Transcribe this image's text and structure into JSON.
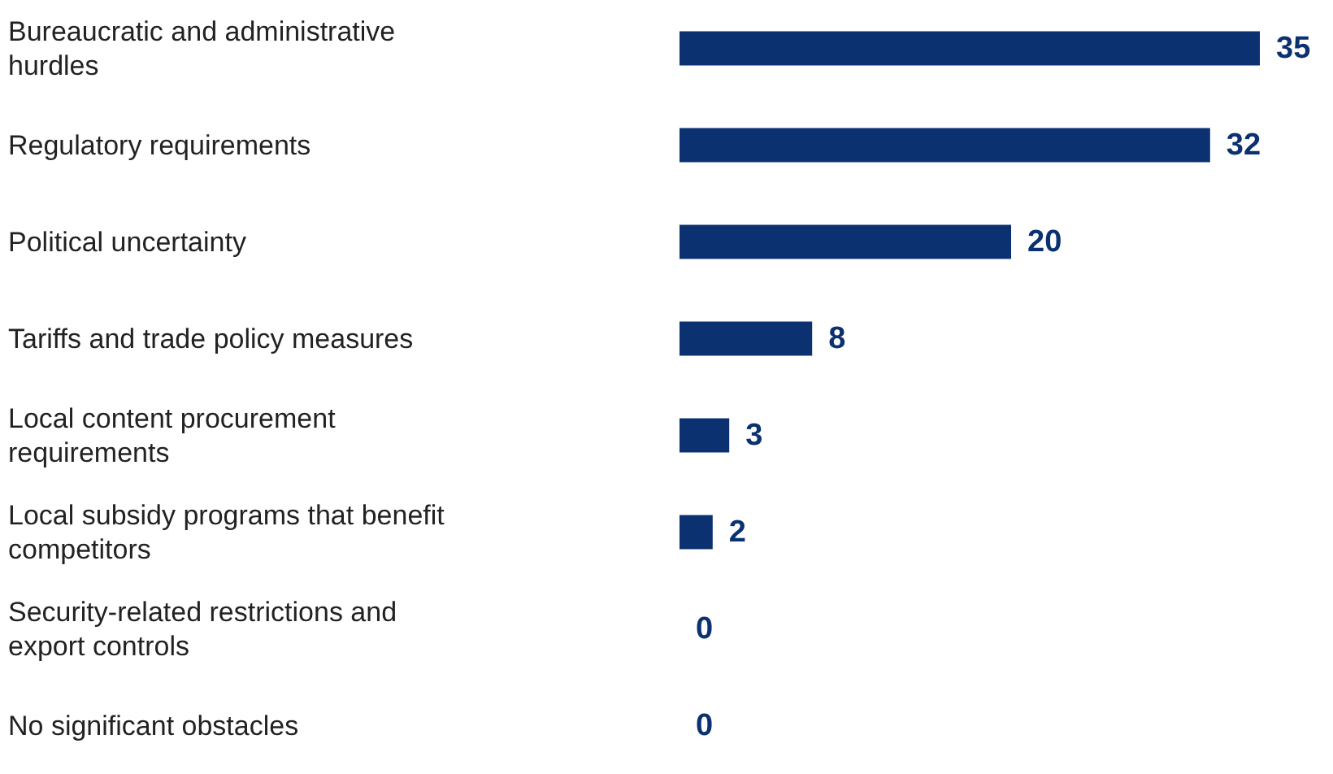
{
  "chart_data": {
    "type": "bar",
    "orientation": "horizontal",
    "categories": [
      "Bureaucratic and administrative hurdles",
      "Regulatory requirements",
      "Political uncertainty",
      "Tariffs and trade policy measures",
      "Local content procurement requirements",
      "Local subsidy programs that benefit competitors",
      "Security-related restrictions and export controls",
      "No significant obstacles"
    ],
    "values": [
      35,
      32,
      20,
      8,
      3,
      2,
      0,
      0
    ],
    "color": "#0b3170",
    "data_labels": true
  }
}
